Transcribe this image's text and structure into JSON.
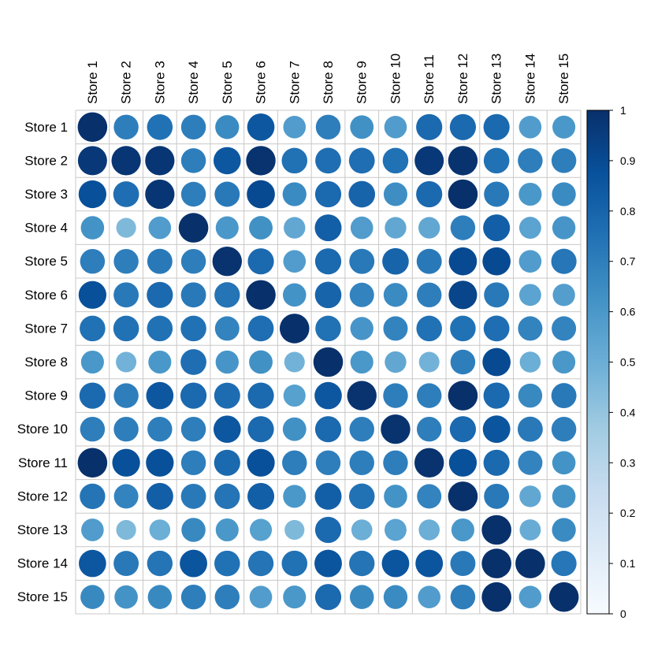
{
  "chart_data": {
    "type": "heatmap",
    "style": "circle",
    "title": "",
    "xlabel": "",
    "ylabel": "",
    "rows": [
      "Store 1",
      "Store 2",
      "Store 3",
      "Store 4",
      "Store 5",
      "Store 6",
      "Store 7",
      "Store 8",
      "Store 9",
      "Store 10",
      "Store 11",
      "Store 12",
      "Store 13",
      "Store 14",
      "Store 15"
    ],
    "columns": [
      "Store 1",
      "Store 2",
      "Store 3",
      "Store 4",
      "Store 5",
      "Store 6",
      "Store 7",
      "Store 8",
      "Store 9",
      "Store 10",
      "Store 11",
      "Store 12",
      "Store 13",
      "Store 14",
      "Store 15"
    ],
    "values": [
      [
        1.0,
        0.7,
        0.75,
        0.7,
        0.65,
        0.85,
        0.58,
        0.7,
        0.63,
        0.58,
        0.78,
        0.78,
        0.78,
        0.58,
        0.6
      ],
      [
        0.97,
        0.98,
        0.98,
        0.7,
        0.85,
        0.99,
        0.75,
        0.76,
        0.76,
        0.75,
        0.97,
        0.99,
        0.75,
        0.7,
        0.7
      ],
      [
        0.88,
        0.76,
        0.98,
        0.7,
        0.72,
        0.9,
        0.65,
        0.78,
        0.8,
        0.64,
        0.78,
        1.0,
        0.72,
        0.6,
        0.65
      ],
      [
        0.62,
        0.45,
        0.58,
        1.0,
        0.6,
        0.63,
        0.53,
        0.82,
        0.58,
        0.53,
        0.53,
        0.7,
        0.82,
        0.55,
        0.61
      ],
      [
        0.7,
        0.7,
        0.72,
        0.7,
        0.99,
        0.78,
        0.58,
        0.78,
        0.72,
        0.8,
        0.72,
        0.9,
        0.9,
        0.58,
        0.73
      ],
      [
        0.88,
        0.72,
        0.78,
        0.72,
        0.74,
        1.0,
        0.62,
        0.8,
        0.68,
        0.65,
        0.7,
        0.92,
        0.72,
        0.55,
        0.57
      ],
      [
        0.75,
        0.75,
        0.75,
        0.75,
        0.68,
        0.76,
        1.0,
        0.75,
        0.61,
        0.68,
        0.75,
        0.75,
        0.76,
        0.68,
        0.68
      ],
      [
        0.6,
        0.48,
        0.6,
        0.76,
        0.61,
        0.63,
        0.48,
        1.0,
        0.6,
        0.53,
        0.48,
        0.7,
        0.9,
        0.5,
        0.6
      ],
      [
        0.78,
        0.7,
        0.85,
        0.78,
        0.77,
        0.78,
        0.56,
        0.85,
        0.99,
        0.7,
        0.7,
        1.0,
        0.78,
        0.66,
        0.72
      ],
      [
        0.7,
        0.7,
        0.7,
        0.7,
        0.85,
        0.78,
        0.63,
        0.78,
        0.7,
        0.99,
        0.7,
        0.78,
        0.86,
        0.72,
        0.7
      ],
      [
        1.0,
        0.88,
        0.88,
        0.7,
        0.78,
        0.88,
        0.7,
        0.7,
        0.7,
        0.7,
        0.99,
        0.88,
        0.78,
        0.68,
        0.62
      ],
      [
        0.74,
        0.68,
        0.82,
        0.72,
        0.74,
        0.82,
        0.6,
        0.82,
        0.75,
        0.62,
        0.68,
        1.0,
        0.72,
        0.53,
        0.62
      ],
      [
        0.58,
        0.45,
        0.5,
        0.66,
        0.6,
        0.56,
        0.45,
        0.78,
        0.5,
        0.55,
        0.5,
        0.6,
        1.0,
        0.51,
        0.65
      ],
      [
        0.85,
        0.72,
        0.74,
        0.86,
        0.75,
        0.74,
        0.75,
        0.86,
        0.74,
        0.86,
        0.86,
        0.72,
        1.0,
        1.0,
        0.73
      ],
      [
        0.66,
        0.62,
        0.66,
        0.7,
        0.7,
        0.58,
        0.6,
        0.78,
        0.66,
        0.65,
        0.58,
        0.7,
        1.0,
        0.58,
        1.0
      ]
    ],
    "colorbar": {
      "range": [
        0,
        1
      ],
      "ticks": [
        "0",
        "0.1",
        "0.2",
        "0.3",
        "0.4",
        "0.5",
        "0.6",
        "0.7",
        "0.8",
        "0.9",
        "1"
      ],
      "colors": [
        "#F7FBFF",
        "#DEEBF7",
        "#C6DBEF",
        "#9ECAE1",
        "#6BAED6",
        "#4292C6",
        "#2171B5",
        "#08519C",
        "#08306B"
      ]
    },
    "grid": true,
    "legend": "right"
  }
}
